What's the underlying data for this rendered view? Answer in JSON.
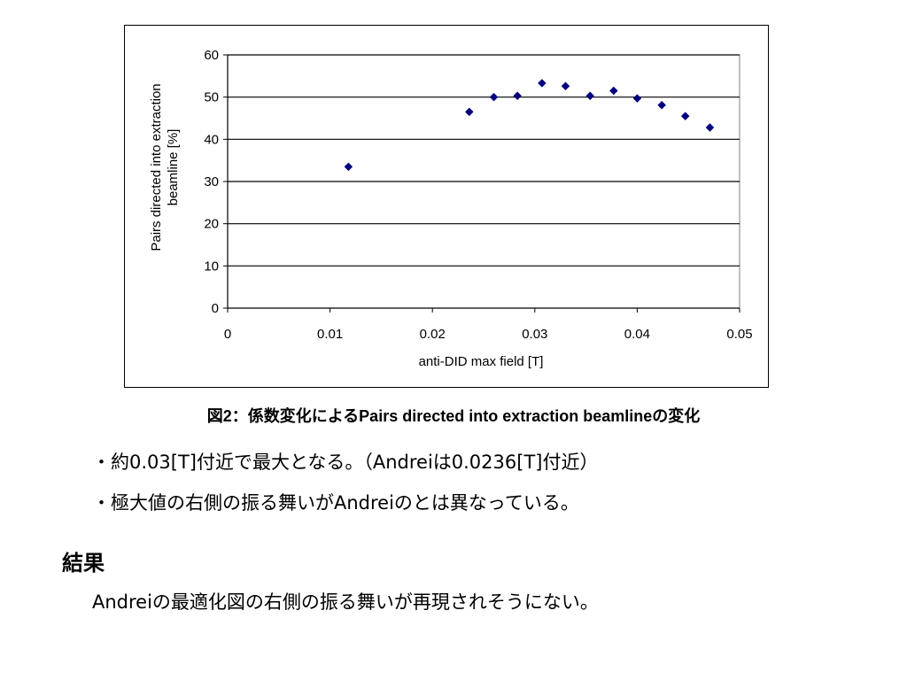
{
  "chart_data": {
    "type": "scatter",
    "xlabel": "anti-DID max field [T]",
    "ylabel_lines": [
      "Pairs directed into extraction",
      "beamline [%]"
    ],
    "xlim": [
      0,
      0.05
    ],
    "ylim": [
      0,
      60
    ],
    "x_ticks": [
      "0",
      "0.01",
      "0.02",
      "0.03",
      "0.04",
      "0.05"
    ],
    "y_ticks": [
      "0",
      "10",
      "20",
      "30",
      "40",
      "50",
      "60"
    ],
    "grid": "horizontal",
    "marker": "diamond",
    "marker_color": "#000080",
    "x": [
      0.0118,
      0.0236,
      0.026,
      0.0283,
      0.0307,
      0.033,
      0.0354,
      0.0377,
      0.04,
      0.0424,
      0.0447,
      0.0471
    ],
    "y": [
      33.5,
      46.5,
      50.0,
      50.3,
      53.3,
      52.6,
      50.3,
      51.5,
      49.7,
      48.1,
      45.5,
      42.8
    ]
  },
  "caption": "図2：係数変化によるPairs directed into extraction beamlineの変化",
  "bullets": [
    "・約0.03[T]付近で最大となる。（Andreiは0.0236[T]付近）",
    "・極大値の右側の振る舞いがAndreiのとは異なっている。"
  ],
  "result": {
    "heading": "結果",
    "body": "Andreiの最適化図の右側の振る舞いが再現されそうにない。"
  }
}
